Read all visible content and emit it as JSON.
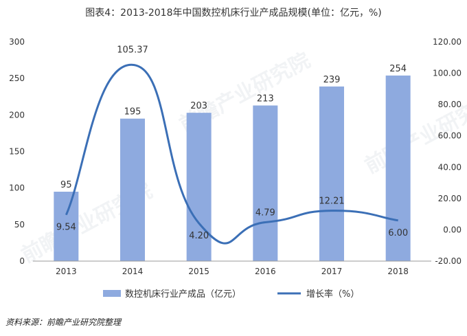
{
  "title": "图表4：2013-2018年中国数控机床行业产成品规模(单位：亿元，%)",
  "source": "资料来源：前瞻产业研究院整理",
  "watermark": "前瞻产业研究院",
  "colors": {
    "bar": "#8eaadf",
    "line": "#3b6fb6",
    "axis": "#999999",
    "text": "#333333"
  },
  "chart_data": {
    "type": "bar",
    "categories": [
      "2013",
      "2014",
      "2015",
      "2016",
      "2017",
      "2018"
    ],
    "series": [
      {
        "name": "数控机床行业产成品（亿元）",
        "type": "bar",
        "axis": "left",
        "values": [
          95,
          195,
          203,
          213,
          239,
          254
        ],
        "labels": [
          "95",
          "195",
          "203",
          "213",
          "239",
          "254"
        ]
      },
      {
        "name": "增长率（%）",
        "type": "line",
        "smooth": true,
        "axis": "right",
        "values": [
          9.54,
          105.37,
          4.2,
          4.79,
          12.21,
          6.0
        ],
        "labels": [
          "9.54",
          "105.37",
          "4.20",
          "4.79",
          "12.21",
          "6.00"
        ]
      }
    ],
    "y_left": {
      "min": 0,
      "max": 300,
      "step": 50,
      "ticks": [
        "0",
        "50",
        "100",
        "150",
        "200",
        "250",
        "300"
      ]
    },
    "y_right": {
      "min": -20,
      "max": 120,
      "step": 20,
      "ticks": [
        "-20.00",
        "0.00",
        "20.00",
        "40.00",
        "60.00",
        "80.00",
        "100.00",
        "120.00"
      ]
    },
    "legend": {
      "position": "bottom",
      "items": [
        "数控机床行业产成品（亿元）",
        "增长率（%）"
      ]
    },
    "grid": false
  }
}
